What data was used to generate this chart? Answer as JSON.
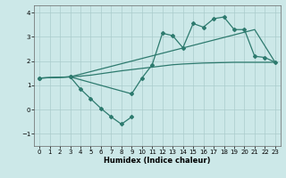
{
  "xlabel": "Humidex (Indice chaleur)",
  "background_color": "#cce8e8",
  "grid_color": "#aacccc",
  "line_color": "#2d7a6e",
  "xlim": [
    -0.5,
    23.5
  ],
  "ylim": [
    -1.5,
    4.3
  ],
  "yticks": [
    -1,
    0,
    1,
    2,
    3,
    4
  ],
  "xticks": [
    0,
    1,
    2,
    3,
    4,
    5,
    6,
    7,
    8,
    9,
    10,
    11,
    12,
    13,
    14,
    15,
    16,
    17,
    18,
    19,
    20,
    21,
    22,
    23
  ],
  "line1_x": [
    0,
    1,
    2,
    3,
    4,
    5,
    6,
    7,
    8,
    9,
    10,
    11,
    12,
    13,
    14,
    15,
    16,
    17,
    18,
    19,
    20,
    21,
    22,
    23
  ],
  "line1_y": [
    1.3,
    1.32,
    1.33,
    1.35,
    1.38,
    1.42,
    1.48,
    1.54,
    1.6,
    1.65,
    1.7,
    1.75,
    1.8,
    1.85,
    1.88,
    1.9,
    1.92,
    1.93,
    1.94,
    1.95,
    1.95,
    1.95,
    1.95,
    1.95
  ],
  "line2_x": [
    0,
    3,
    21,
    23
  ],
  "line2_y": [
    1.3,
    1.35,
    3.3,
    1.95
  ],
  "line3_x": [
    0,
    3,
    9,
    10,
    11,
    12,
    13,
    14,
    15,
    16,
    17,
    18,
    19,
    20,
    21,
    22,
    23
  ],
  "line3_y": [
    1.3,
    1.35,
    0.65,
    1.3,
    1.85,
    3.15,
    3.05,
    2.55,
    3.55,
    3.4,
    3.75,
    3.82,
    3.3,
    3.3,
    2.2,
    2.15,
    1.95
  ],
  "line4_x": [
    3,
    4,
    5,
    6,
    7,
    8,
    9
  ],
  "line4_y": [
    1.35,
    0.85,
    0.45,
    0.05,
    -0.3,
    -0.6,
    -0.3
  ],
  "marker_x3": [
    3,
    9,
    10,
    11,
    12,
    13,
    14,
    15,
    16,
    17,
    18,
    19,
    20,
    21,
    22,
    23
  ],
  "marker_y3": [
    1.35,
    0.65,
    1.3,
    1.85,
    3.15,
    3.05,
    2.55,
    3.55,
    3.4,
    3.75,
    3.82,
    3.3,
    3.3,
    2.2,
    2.15,
    1.95
  ],
  "marker_x4": [
    3,
    4,
    5,
    6,
    7,
    8,
    9
  ],
  "marker_y4": [
    1.35,
    0.85,
    0.45,
    0.05,
    -0.3,
    -0.6,
    -0.3
  ]
}
